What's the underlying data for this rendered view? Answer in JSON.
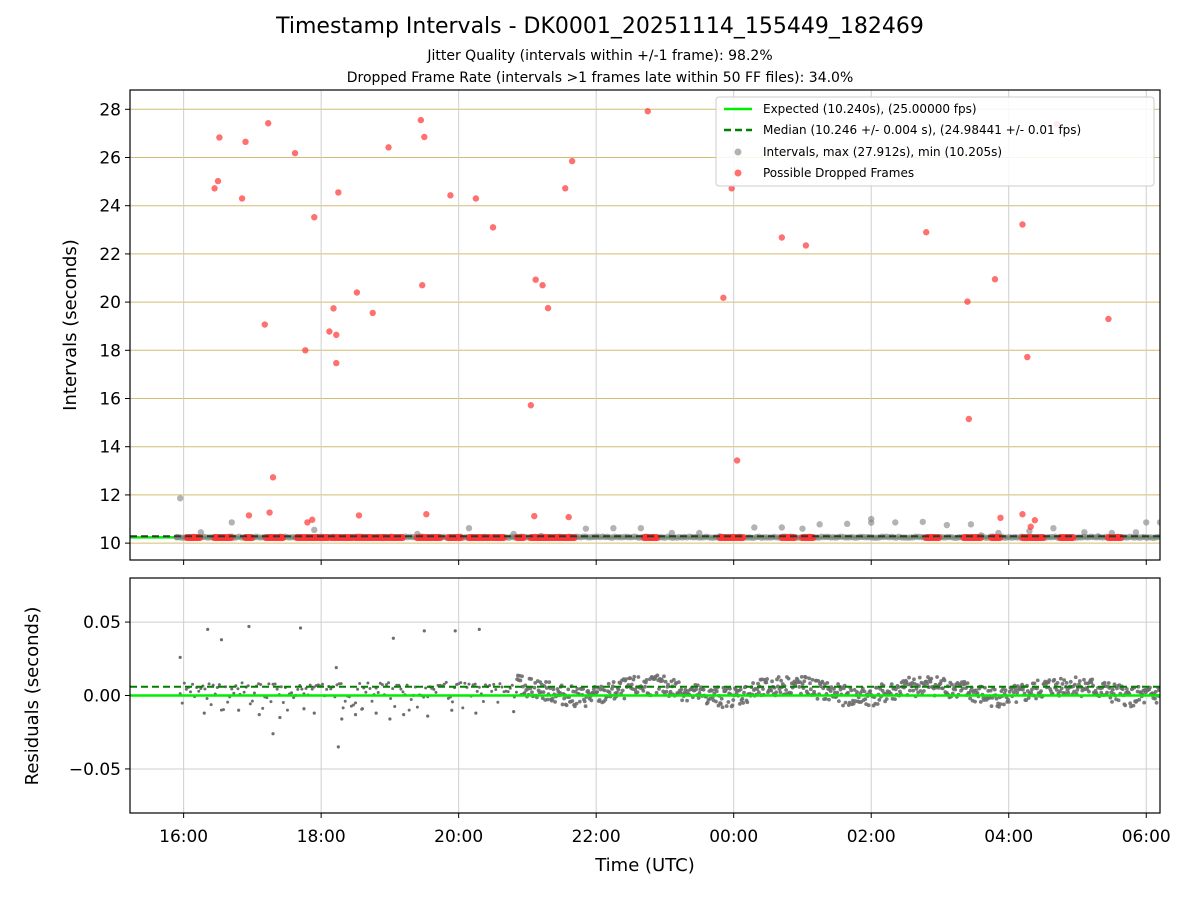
{
  "chart_data": {
    "type": "scatter",
    "title": "Timestamp Intervals - DK0001_20251114_155449_182469",
    "subtitle_lines": [
      "Jitter Quality (intervals within +/-1 frame): 98.2%",
      "Dropped Frame Rate (intervals >1 frames late within 50 FF files): 34.0%"
    ],
    "xlabel": "Time (UTC)",
    "xlim_hours": [
      15.22,
      30.2
    ],
    "x_ticks": [
      {
        "v": 16,
        "label": "16:00"
      },
      {
        "v": 18,
        "label": "18:00"
      },
      {
        "v": 20,
        "label": "20:00"
      },
      {
        "v": 22,
        "label": "22:00"
      },
      {
        "v": 24,
        "label": "00:00"
      },
      {
        "v": 26,
        "label": "02:00"
      },
      {
        "v": 28,
        "label": "04:00"
      },
      {
        "v": 30,
        "label": "06:00"
      }
    ],
    "top_panel": {
      "ylabel": "Intervals (seconds)",
      "ylim": [
        9.3,
        28.8
      ],
      "y_ticks": [
        10,
        12,
        14,
        16,
        18,
        20,
        22,
        24,
        26,
        28
      ],
      "expected": 10.24,
      "median": 10.246,
      "legend": [
        {
          "key": "expected",
          "label": "Expected (10.240s), (25.00000 fps)"
        },
        {
          "key": "median",
          "label": "Median (10.246 +/- 0.004 s), (24.98441 +/- 0.01 fps)"
        },
        {
          "key": "intervals",
          "label": "Intervals, max (27.912s), min (10.205s)"
        },
        {
          "key": "dropped",
          "label": "Possible Dropped Frames"
        }
      ],
      "interval_points": [
        [
          15.95,
          11.86
        ],
        [
          16.25,
          10.45
        ],
        [
          16.7,
          10.86
        ],
        [
          17.9,
          10.55
        ],
        [
          19.4,
          10.38
        ],
        [
          20.15,
          10.62
        ],
        [
          20.8,
          10.38
        ],
        [
          21.85,
          10.6
        ],
        [
          22.25,
          10.62
        ],
        [
          22.65,
          10.62
        ],
        [
          23.1,
          10.42
        ],
        [
          23.5,
          10.42
        ],
        [
          24.3,
          10.65
        ],
        [
          24.7,
          10.65
        ],
        [
          25.0,
          10.6
        ],
        [
          25.25,
          10.78
        ],
        [
          25.65,
          10.8
        ],
        [
          26.0,
          10.85
        ],
        [
          26.0,
          11.0
        ],
        [
          26.35,
          10.86
        ],
        [
          26.75,
          10.88
        ],
        [
          27.1,
          10.75
        ],
        [
          27.45,
          10.78
        ],
        [
          27.85,
          10.42
        ],
        [
          28.3,
          10.5
        ],
        [
          28.65,
          10.62
        ],
        [
          29.1,
          10.45
        ],
        [
          29.5,
          10.42
        ],
        [
          29.85,
          10.45
        ],
        [
          30.0,
          10.86
        ],
        [
          30.2,
          10.86
        ],
        [
          15.9,
          10.25
        ],
        [
          21.2,
          10.3
        ],
        [
          23.8,
          10.28
        ],
        [
          27.6,
          10.32
        ],
        [
          29.3,
          10.28
        ]
      ],
      "dropped_points": [
        [
          16.45,
          24.72
        ],
        [
          16.5,
          25.02
        ],
        [
          16.52,
          26.83
        ],
        [
          16.85,
          24.3
        ],
        [
          16.9,
          26.65
        ],
        [
          16.95,
          11.15
        ],
        [
          17.18,
          19.07
        ],
        [
          17.23,
          27.42
        ],
        [
          17.25,
          11.27
        ],
        [
          17.3,
          12.73
        ],
        [
          17.62,
          26.18
        ],
        [
          17.77,
          18.0
        ],
        [
          17.8,
          10.86
        ],
        [
          17.87,
          10.97
        ],
        [
          17.9,
          23.52
        ],
        [
          18.12,
          18.78
        ],
        [
          18.18,
          19.74
        ],
        [
          18.22,
          18.64
        ],
        [
          18.22,
          17.47
        ],
        [
          18.25,
          24.55
        ],
        [
          18.52,
          20.4
        ],
        [
          18.55,
          11.15
        ],
        [
          18.75,
          19.55
        ],
        [
          18.98,
          26.42
        ],
        [
          19.45,
          27.55
        ],
        [
          19.47,
          20.7
        ],
        [
          19.5,
          26.85
        ],
        [
          19.53,
          11.2
        ],
        [
          19.88,
          24.43
        ],
        [
          20.25,
          24.3
        ],
        [
          20.5,
          23.1
        ],
        [
          21.05,
          15.72
        ],
        [
          21.1,
          11.12
        ],
        [
          21.12,
          20.93
        ],
        [
          21.22,
          20.7
        ],
        [
          21.3,
          19.75
        ],
        [
          21.55,
          24.72
        ],
        [
          21.6,
          11.08
        ],
        [
          21.65,
          25.85
        ],
        [
          22.75,
          27.92
        ],
        [
          23.85,
          20.18
        ],
        [
          23.97,
          24.72
        ],
        [
          24.05,
          13.43
        ],
        [
          24.7,
          22.68
        ],
        [
          25.05,
          22.35
        ],
        [
          26.8,
          22.9
        ],
        [
          27.4,
          20.02
        ],
        [
          27.42,
          15.15
        ],
        [
          27.8,
          20.95
        ],
        [
          27.88,
          11.05
        ],
        [
          28.2,
          23.22
        ],
        [
          28.2,
          11.2
        ],
        [
          28.27,
          17.72
        ],
        [
          28.32,
          10.68
        ],
        [
          28.38,
          10.95
        ],
        [
          28.7,
          27.38
        ],
        [
          29.45,
          19.3
        ]
      ],
      "dropped_baseline_runs": [
        [
          16.05,
          16.25
        ],
        [
          16.45,
          16.7
        ],
        [
          16.9,
          17.0
        ],
        [
          17.2,
          17.45
        ],
        [
          17.65,
          18.1
        ],
        [
          18.15,
          18.45
        ],
        [
          18.5,
          18.75
        ],
        [
          18.78,
          18.98
        ],
        [
          19.0,
          19.2
        ],
        [
          19.4,
          19.75
        ],
        [
          19.85,
          20.05
        ],
        [
          20.15,
          20.45
        ],
        [
          20.5,
          20.65
        ],
        [
          20.85,
          20.95
        ],
        [
          21.05,
          21.7
        ],
        [
          22.7,
          22.9
        ],
        [
          23.8,
          24.15
        ],
        [
          24.7,
          24.9
        ],
        [
          25.0,
          25.15
        ],
        [
          26.8,
          27.0
        ],
        [
          27.35,
          27.6
        ],
        [
          27.75,
          27.88
        ],
        [
          28.2,
          28.5
        ],
        [
          28.75,
          28.95
        ],
        [
          29.45,
          29.65
        ]
      ]
    },
    "bottom_panel": {
      "ylabel": "Residuals (seconds)",
      "ylim": [
        -0.08,
        0.08
      ],
      "y_ticks": [
        {
          "v": 0.05,
          "label": "0.05"
        },
        {
          "v": 0.0,
          "label": "0.00"
        },
        {
          "v": -0.05,
          "label": "−0.05"
        }
      ],
      "expected_residual": 0.0,
      "median_residual": 0.006,
      "outliers": [
        [
          15.95,
          0.026
        ],
        [
          16.35,
          0.045
        ],
        [
          16.55,
          0.038
        ],
        [
          16.95,
          0.047
        ],
        [
          17.7,
          0.046
        ],
        [
          19.05,
          0.039
        ],
        [
          19.5,
          0.044
        ],
        [
          19.95,
          0.044
        ],
        [
          20.3,
          0.045
        ],
        [
          17.3,
          -0.026
        ],
        [
          18.25,
          -0.035
        ],
        [
          18.22,
          0.019
        ],
        [
          16.3,
          -0.012
        ],
        [
          16.8,
          -0.01
        ],
        [
          17.1,
          -0.013
        ],
        [
          17.4,
          -0.015
        ],
        [
          17.9,
          -0.012
        ],
        [
          18.3,
          -0.016
        ],
        [
          18.5,
          -0.013
        ],
        [
          18.8,
          -0.012
        ],
        [
          19.0,
          -0.016
        ],
        [
          19.2,
          -0.013
        ],
        [
          19.55,
          -0.014
        ],
        [
          19.9,
          -0.01
        ],
        [
          20.25,
          -0.012
        ],
        [
          20.8,
          -0.011
        ],
        [
          17.75,
          -0.009
        ],
        [
          18.6,
          -0.009
        ]
      ]
    },
    "colors": {
      "expected": "#00ee00",
      "median": "#007f00",
      "dropped": "#ff3333",
      "intervals": "#808080",
      "hgrid": "#d4bd72",
      "vgrid": "#cfcfcf",
      "residual": "#6e6e6e"
    }
  }
}
